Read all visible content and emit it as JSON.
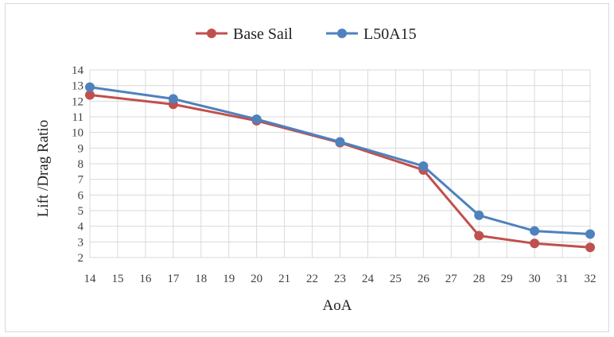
{
  "chart_data": {
    "type": "line",
    "xlabel": "AoA",
    "ylabel": "Lift /Drag Ratio",
    "x_ticks": [
      "14",
      "15",
      "16",
      "17",
      "18",
      "19",
      "20",
      "21",
      "22",
      "23",
      "24",
      "25",
      "26",
      "27",
      "28",
      "29",
      "30",
      "31",
      "32"
    ],
    "y_ticks": [
      "2",
      "3",
      "4",
      "5",
      "6",
      "7",
      "8",
      "9",
      "10",
      "11",
      "12",
      "13",
      "14"
    ],
    "ylim": [
      2,
      14
    ],
    "grid": true,
    "legend_position": "top",
    "x": [
      "14",
      "17",
      "20",
      "23",
      "26",
      "28",
      "30",
      "32"
    ],
    "series": [
      {
        "name": "Base Sail",
        "color": "#c0504d",
        "values": [
          12.4,
          11.8,
          10.75,
          9.35,
          7.6,
          3.4,
          2.9,
          2.65
        ]
      },
      {
        "name": "L50A15",
        "color": "#4f81bd",
        "values": [
          12.9,
          12.15,
          10.85,
          9.4,
          7.85,
          4.7,
          3.7,
          3.5
        ]
      }
    ]
  }
}
